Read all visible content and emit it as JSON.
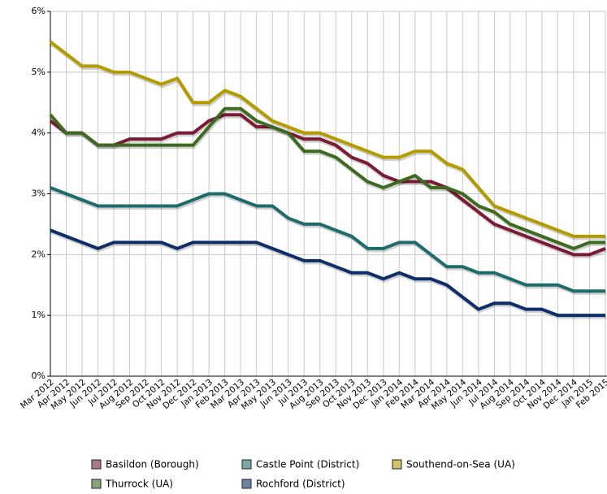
{
  "chart_data": {
    "type": "line",
    "categories": [
      "Mar 2012",
      "Apr 2012",
      "May 2012",
      "Jun 2012",
      "Jul 2012",
      "Aug 2012",
      "Sep 2012",
      "Oct 2012",
      "Nov 2012",
      "Dec 2012",
      "Jan 2013",
      "Feb 2013",
      "Mar 2013",
      "Apr 2013",
      "May 2013",
      "Jun 2013",
      "Jul 2013",
      "Aug 2013",
      "Sep 2013",
      "Oct 2013",
      "Nov 2013",
      "Dec 2013",
      "Jan 2014",
      "Feb 2014",
      "Mar 2014",
      "Apr 2014",
      "May 2014",
      "Jun 2014",
      "Jul 2014",
      "Aug 2014",
      "Sep 2014",
      "Oct 2014",
      "Nov 2014",
      "Dec 2014",
      "Jan 2015",
      "Feb 2015"
    ],
    "series": [
      {
        "name": "Basildon (Borough)",
        "color": "#7a1a34",
        "values": [
          4.2,
          4.0,
          4.0,
          3.8,
          3.8,
          3.9,
          3.9,
          3.9,
          4.0,
          4.0,
          4.2,
          4.3,
          4.3,
          4.1,
          4.1,
          4.0,
          3.9,
          3.9,
          3.8,
          3.6,
          3.5,
          3.3,
          3.2,
          3.2,
          3.2,
          3.1,
          2.9,
          2.7,
          2.5,
          2.4,
          2.3,
          2.2,
          2.1,
          2.0,
          2.0,
          2.1
        ]
      },
      {
        "name": "Castle Point (District)",
        "color": "#1f6b6b",
        "values": [
          3.1,
          3.0,
          2.9,
          2.8,
          2.8,
          2.8,
          2.8,
          2.8,
          2.8,
          2.9,
          3.0,
          3.0,
          2.9,
          2.8,
          2.8,
          2.6,
          2.5,
          2.5,
          2.4,
          2.3,
          2.1,
          2.1,
          2.2,
          2.2,
          2.0,
          1.8,
          1.8,
          1.7,
          1.7,
          1.6,
          1.5,
          1.5,
          1.5,
          1.4,
          1.4,
          1.4
        ]
      },
      {
        "name": "Southend-on-Sea (UA)",
        "color": "#b39b00",
        "values": [
          5.5,
          5.3,
          5.1,
          5.1,
          5.0,
          5.0,
          4.9,
          4.8,
          4.9,
          4.5,
          4.5,
          4.7,
          4.6,
          4.4,
          4.2,
          4.1,
          4.0,
          4.0,
          3.9,
          3.8,
          3.7,
          3.6,
          3.6,
          3.7,
          3.7,
          3.5,
          3.4,
          3.1,
          2.8,
          2.7,
          2.6,
          2.5,
          2.4,
          2.3,
          2.3,
          2.3
        ]
      },
      {
        "name": "Thurrock (UA)",
        "color": "#3c6a1e",
        "values": [
          4.3,
          4.0,
          4.0,
          3.8,
          3.8,
          3.8,
          3.8,
          3.8,
          3.8,
          3.8,
          4.1,
          4.4,
          4.4,
          4.2,
          4.1,
          4.0,
          3.7,
          3.7,
          3.6,
          3.4,
          3.2,
          3.1,
          3.2,
          3.3,
          3.1,
          3.1,
          3.0,
          2.8,
          2.7,
          2.5,
          2.4,
          2.3,
          2.2,
          2.1,
          2.2,
          2.2
        ]
      },
      {
        "name": "Rochford (District)",
        "color": "#0e2e6a",
        "values": [
          2.4,
          2.3,
          2.2,
          2.1,
          2.2,
          2.2,
          2.2,
          2.2,
          2.1,
          2.2,
          2.2,
          2.2,
          2.2,
          2.2,
          2.1,
          2.0,
          1.9,
          1.9,
          1.8,
          1.7,
          1.7,
          1.6,
          1.7,
          1.6,
          1.6,
          1.5,
          1.3,
          1.1,
          1.2,
          1.2,
          1.1,
          1.1,
          1.0,
          1.0,
          1.0,
          1.0
        ]
      }
    ],
    "ylim": [
      0,
      6
    ],
    "yticks": [
      {
        "value": 0,
        "label": "0%"
      },
      {
        "value": 1,
        "label": "1%"
      },
      {
        "value": 2,
        "label": "2%"
      },
      {
        "value": 3,
        "label": "3%"
      },
      {
        "value": 4,
        "label": "4%"
      },
      {
        "value": 5,
        "label": "5%"
      },
      {
        "value": 6,
        "label": "6%"
      }
    ],
    "grid": true
  }
}
